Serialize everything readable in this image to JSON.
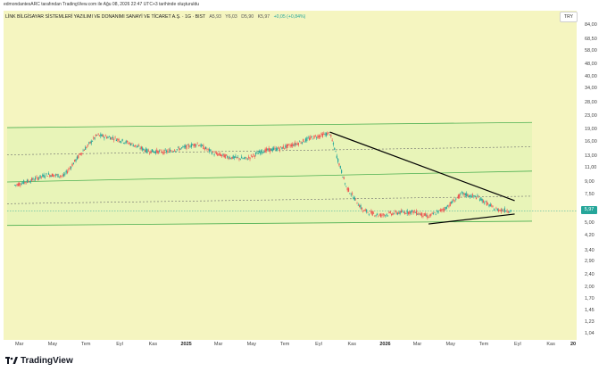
{
  "topline": "edmondantesARC tarafından TradingView.com ile Ağu 08, 2026 22:47 UTC+3 tarihinde oluşturuldu",
  "header": {
    "symbol": "LİNK BİLGİSAYAR SİSTEMLERİ YAZILIMI VE DONANIMI SANAYİ VE TİCARET A.Ş. · 1G · BIST",
    "open": "A5,93",
    "high": "Y6,03",
    "low": "D5,90",
    "close": "K5,97",
    "change": "+0,05 (+0,84%)"
  },
  "currency_button": "TRY",
  "last_price_label": "5,97",
  "brand": "TradingView",
  "colors": {
    "background": "#f5f5c0",
    "channel_fill": "#e8f4b8",
    "channel_line": "#4caf50",
    "up": "#26a69a",
    "down": "#ef5350",
    "trendline": "#000000"
  },
  "chart_data": {
    "type": "line",
    "scale": "log",
    "title": "LİNK BİLGİSAYAR SİSTEMLERİ YAZILIMI VE DONANIMI SANAYİ VE TİCARET A.Ş. · 1G · BIST",
    "ylabel": "TRY",
    "ylim": [
      1.04,
      84.0
    ],
    "y_ticks": [
      "84,00",
      "68,50",
      "58,00",
      "48,00",
      "40,00",
      "34,00",
      "28,00",
      "23,00",
      "19,00",
      "16,00",
      "13,00",
      "11,00",
      "9,00",
      "7,50",
      "6,00",
      "5,00",
      "4,20",
      "3,40",
      "2,90",
      "2,40",
      "2,00",
      "1,70",
      "1,45",
      "1,23",
      "1,04"
    ],
    "x_ticks": [
      {
        "label": "Mar",
        "bold": false
      },
      {
        "label": "May",
        "bold": false
      },
      {
        "label": "Tem",
        "bold": false
      },
      {
        "label": "Eyl",
        "bold": false
      },
      {
        "label": "Kas",
        "bold": false
      },
      {
        "label": "2025",
        "bold": true
      },
      {
        "label": "Mar",
        "bold": false
      },
      {
        "label": "May",
        "bold": false
      },
      {
        "label": "Tem",
        "bold": false
      },
      {
        "label": "Eyl",
        "bold": false
      },
      {
        "label": "Kas",
        "bold": false
      },
      {
        "label": "2026",
        "bold": true
      },
      {
        "label": "Mar",
        "bold": false
      },
      {
        "label": "May",
        "bold": false
      },
      {
        "label": "Tem",
        "bold": false
      },
      {
        "label": "Eyl",
        "bold": false
      },
      {
        "label": "Kas",
        "bold": false
      },
      {
        "label": "20",
        "bold": true
      }
    ],
    "series": [
      {
        "values_by_month": [
          [
            "2024-02",
            8.6
          ],
          [
            "2024-03",
            9.2
          ],
          [
            "2024-04",
            10.0
          ],
          [
            "2024-05",
            9.8
          ],
          [
            "2024-06",
            13.5
          ],
          [
            "2024-07",
            17.5
          ],
          [
            "2024-08",
            16.8
          ],
          [
            "2024-09",
            15.5
          ],
          [
            "2024-10",
            14.0
          ],
          [
            "2024-11",
            13.8
          ],
          [
            "2024-12",
            14.5
          ],
          [
            "2025-01",
            15.5
          ],
          [
            "2025-02",
            13.5
          ],
          [
            "2025-03",
            12.8
          ],
          [
            "2025-04",
            12.5
          ],
          [
            "2025-05",
            14.0
          ],
          [
            "2025-06",
            14.5
          ],
          [
            "2025-07",
            15.5
          ],
          [
            "2025-08",
            17.0
          ],
          [
            "2025-09",
            18.0
          ],
          [
            "2025-10",
            8.4
          ],
          [
            "2025-11",
            6.0
          ],
          [
            "2025-12",
            5.6
          ],
          [
            "2026-01",
            5.8
          ],
          [
            "2026-02",
            5.9
          ],
          [
            "2026-03",
            5.5
          ],
          [
            "2026-04",
            6.2
          ],
          [
            "2026-05",
            7.6
          ],
          [
            "2026-06",
            7.2
          ],
          [
            "2026-07",
            6.1
          ],
          [
            "2026-08",
            5.97
          ]
        ]
      }
    ],
    "channel": {
      "upper_start": 19.5,
      "upper_end": 21.0,
      "mid_start": 9.0,
      "mid_end": 10.5,
      "lower_start": 4.85,
      "lower_end": 5.15
    },
    "trendlines": [
      {
        "from": [
          "2025-09-15",
          18.3
        ],
        "to": [
          "2026-08-20",
          6.9
        ]
      },
      {
        "from": [
          "2026-03-15",
          4.95
        ],
        "to": [
          "2026-08-20",
          5.7
        ]
      }
    ]
  }
}
